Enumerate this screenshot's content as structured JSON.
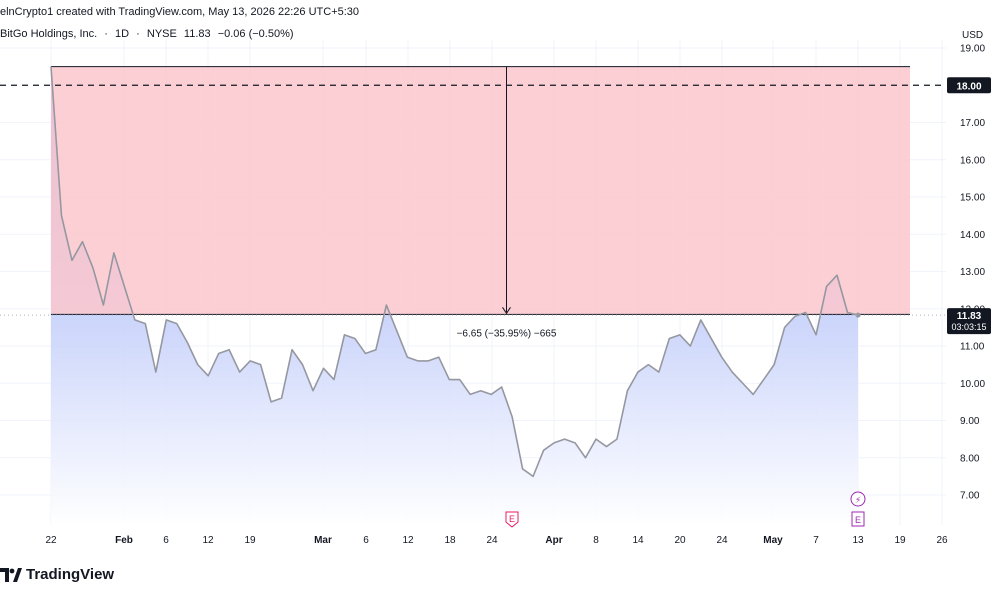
{
  "header": {
    "created_by": "elnCrypto1 created with TradingView.com, May 13, 2026 22:26 UTC+5:30"
  },
  "symbol": {
    "name": "BitGo Holdings, Inc.",
    "interval": "1D",
    "exchange": "NYSE",
    "last": "11.83",
    "change": "−0.06 (−0.50%)",
    "separator": "·"
  },
  "currency": "USD",
  "footer": {
    "logo_text": "TradingView"
  },
  "colors": {
    "line": "#9598a1",
    "area_top": "#7e96f5",
    "area_bottom": "#ffffff",
    "range_fill": "#fcc7cd",
    "range_border": "#131722",
    "price_tag_bg": "#131722",
    "earnings": "#e91e63",
    "dividend": "#9c27b0"
  },
  "chart_data": {
    "type": "area",
    "y_axis": {
      "ticks": [
        "7.00",
        "8.00",
        "9.00",
        "10.00",
        "11.00",
        "12.00",
        "13.00",
        "14.00",
        "15.00",
        "16.00",
        "17.00",
        "19.00"
      ],
      "ylim": [
        6.2,
        19.2
      ]
    },
    "x_axis": {
      "labels": [
        "22",
        "Feb",
        "6",
        "12",
        "19",
        "Mar",
        "6",
        "12",
        "18",
        "24",
        "Apr",
        "8",
        "14",
        "20",
        "24",
        "May",
        "7",
        "13",
        "19",
        "26"
      ],
      "bold_labels": [
        "Feb",
        "Mar",
        "Apr",
        "May"
      ]
    },
    "series": [
      {
        "values": [
          18.5,
          14.5,
          13.3,
          13.8,
          13.1,
          12.1,
          13.5,
          12.6,
          11.7,
          11.6,
          10.3,
          11.7,
          11.6,
          11.1,
          10.5,
          10.2,
          10.8,
          10.9,
          10.3,
          10.6,
          10.5,
          9.5,
          9.6,
          10.9,
          10.5,
          9.8,
          10.4,
          10.1,
          11.3,
          11.2,
          10.8,
          10.9,
          12.1,
          11.4,
          10.7,
          10.6,
          10.6,
          10.7,
          10.1,
          10.1,
          9.7,
          9.8,
          9.7,
          9.9,
          9.1,
          7.7,
          7.5,
          8.2,
          8.4,
          8.5,
          8.4,
          8.0,
          8.5,
          8.3,
          8.5,
          9.8,
          10.3,
          10.5,
          10.3,
          11.2,
          11.3,
          11.0,
          11.7,
          11.2,
          10.7,
          10.3,
          10.0,
          9.7,
          10.1,
          10.5,
          11.5,
          11.8,
          11.9,
          11.3,
          12.6,
          12.9,
          11.9,
          11.83
        ]
      }
    ],
    "date_range": {
      "start_price": 18.5,
      "end_price": 11.85,
      "label": "−6.65 (−35.95%) −665"
    },
    "horizontal_line": {
      "price": 18.0,
      "label": "18.00"
    },
    "last_price": {
      "value": "11.83",
      "countdown": "03:03:15"
    },
    "events": [
      {
        "type": "earnings",
        "label": "E",
        "position": "Mar 27"
      },
      {
        "type": "earnings",
        "label": "E",
        "position": "May 13"
      },
      {
        "type": "flash",
        "label": "⚡",
        "position": "May 13"
      }
    ]
  }
}
